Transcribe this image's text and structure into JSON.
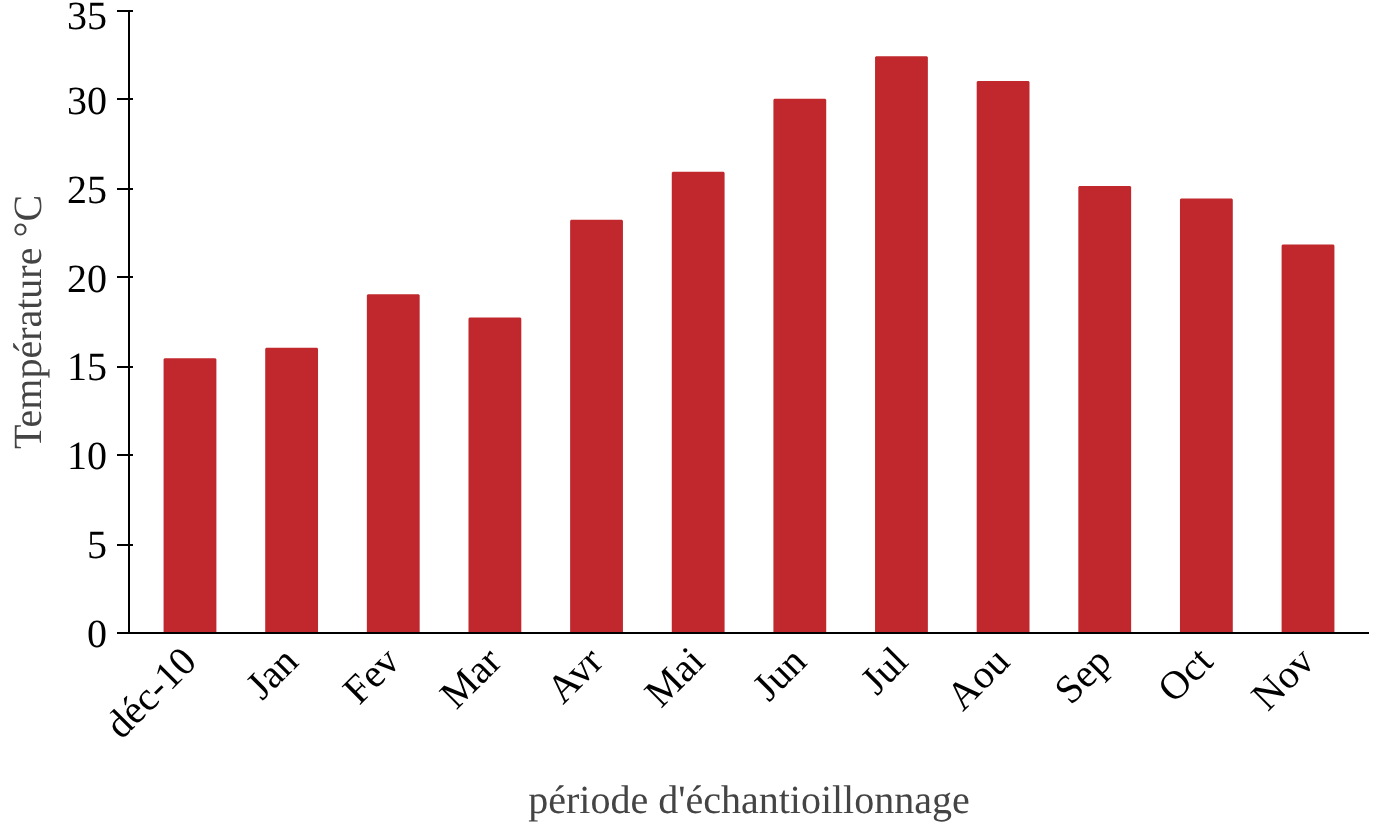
{
  "chart_data": {
    "type": "bar",
    "xlabel": "période d'échantioillonnage",
    "ylabel": "Température °C",
    "categories": [
      "déc-10",
      "Jan",
      "Fev",
      "Mar",
      "Avr",
      "Mai",
      "Jun",
      "Jul",
      "Aou",
      "Sep",
      "Oct",
      "Nov"
    ],
    "values": [
      15.4,
      16.0,
      19.0,
      17.7,
      23.2,
      25.9,
      30.0,
      32.4,
      31.0,
      25.1,
      24.4,
      21.8
    ],
    "color": "#c0282d",
    "ylim": [
      0,
      35
    ],
    "yticks": [
      0,
      5,
      10,
      15,
      20,
      25,
      30,
      35
    ],
    "grid": false
  }
}
